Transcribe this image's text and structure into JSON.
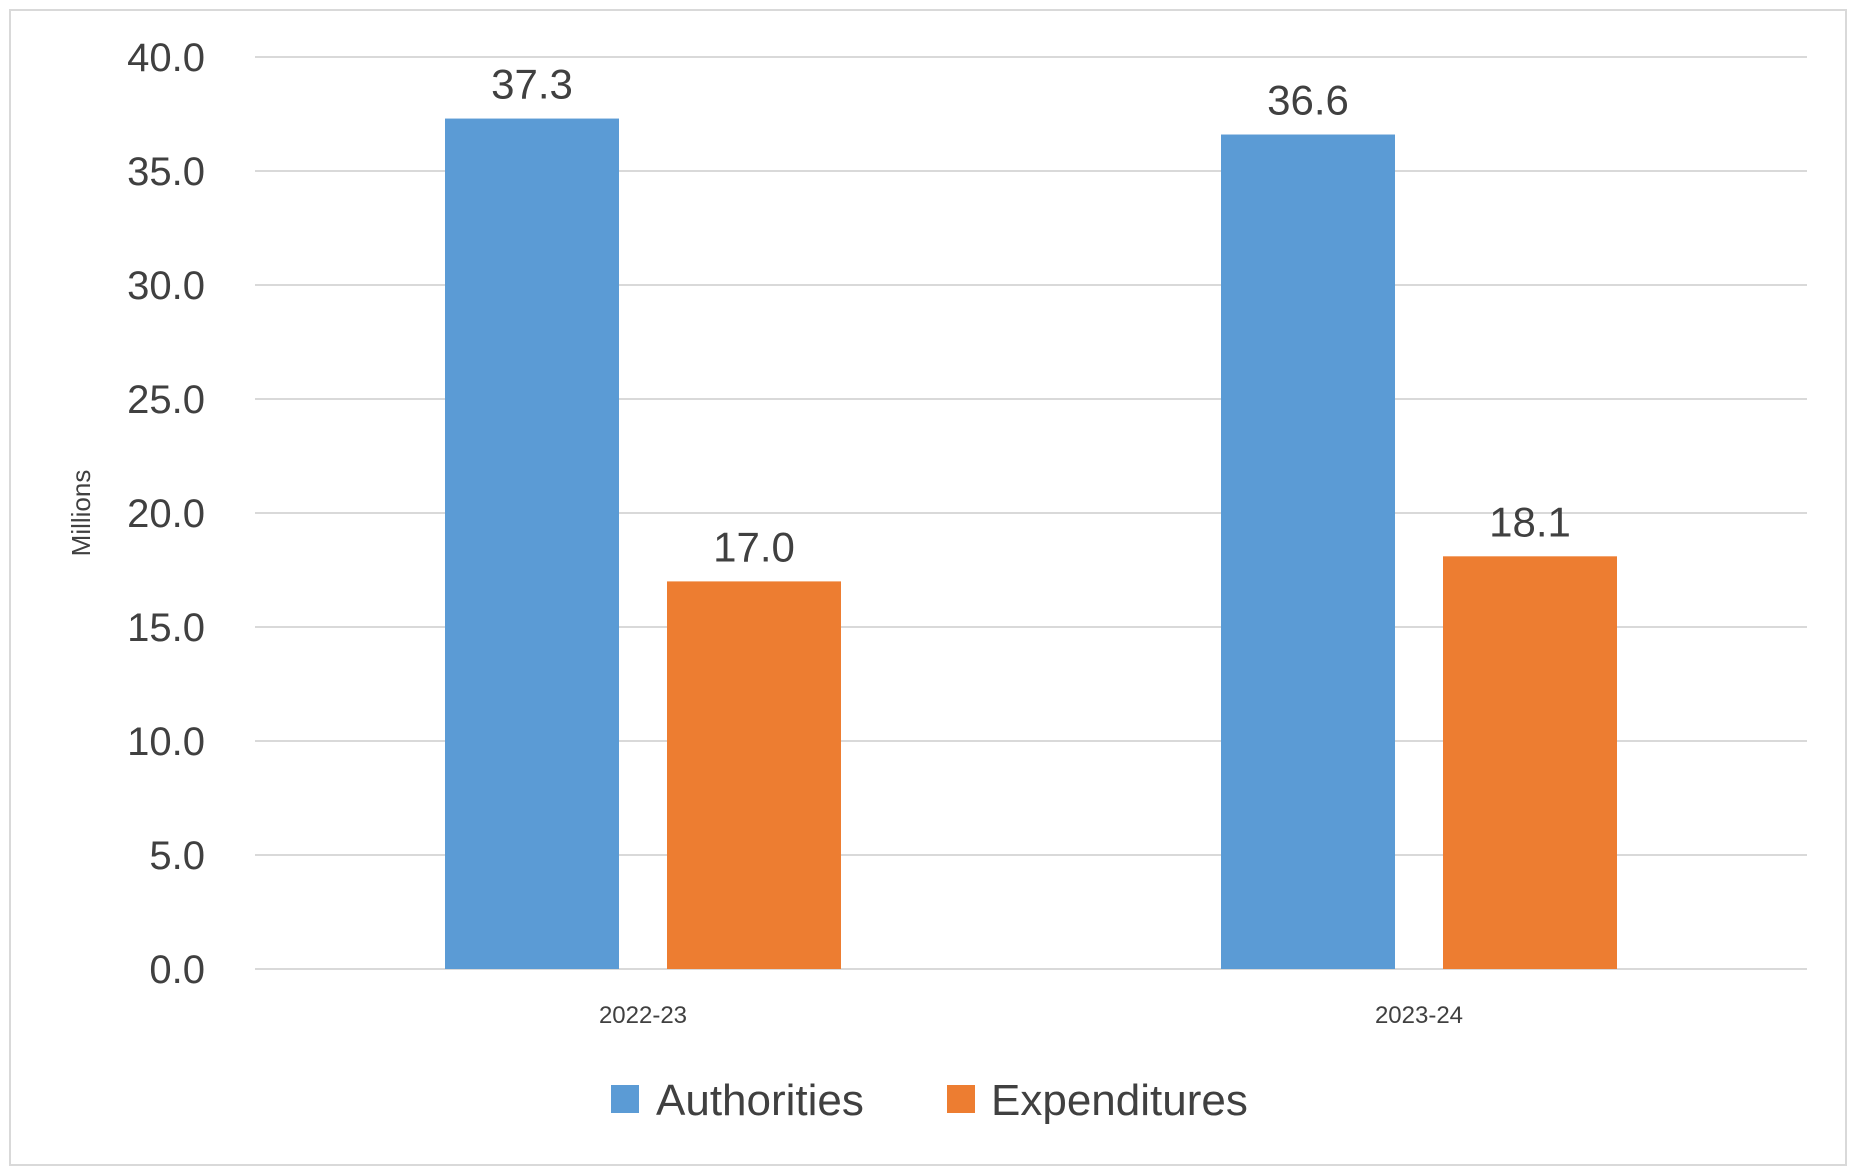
{
  "chart_data": {
    "type": "bar",
    "title": "",
    "xlabel": "",
    "ylabel": "Millions",
    "ylim": [
      0,
      40
    ],
    "yticks": [
      "0.0",
      "5.0",
      "10.0",
      "15.0",
      "20.0",
      "25.0",
      "30.0",
      "35.0",
      "40.0"
    ],
    "grid": true,
    "legend_position": "bottom",
    "categories": [
      "2022-23",
      "2023-24"
    ],
    "series": [
      {
        "name": "Authorities",
        "color": "#5B9BD5",
        "values": [
          37.3,
          36.6
        ],
        "labels": [
          "37.3",
          "36.6"
        ]
      },
      {
        "name": "Expenditures",
        "color": "#ED7D31",
        "values": [
          17.0,
          18.1
        ],
        "labels": [
          "17.0",
          "18.1"
        ]
      }
    ]
  }
}
